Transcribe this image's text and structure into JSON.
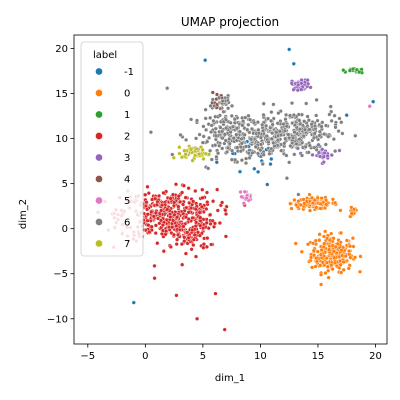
{
  "chart_data": {
    "type": "scatter",
    "title": "UMAP projection",
    "xlabel": "dim_1",
    "ylabel": "dim_2",
    "xlim": [
      -6.2,
      21.0
    ],
    "ylim": [
      -12.8,
      21.5
    ],
    "xticks": [
      -5,
      0,
      5,
      10,
      15,
      20
    ],
    "yticks": [
      -10,
      -5,
      0,
      5,
      10,
      15,
      20
    ],
    "grid": false,
    "legend": {
      "title": "label",
      "placement": "upper-left"
    },
    "series": [
      {
        "name": "-1",
        "color": "#1f77b4",
        "clusters": [
          {
            "cx": 9.5,
            "cy": 8.0,
            "sx": 1.6,
            "sy": 1.2,
            "n": 18
          }
        ],
        "points": [
          [
            12.5,
            19.9
          ],
          [
            5.2,
            18.7
          ],
          [
            -1.0,
            -8.2
          ],
          [
            12.9,
            18.3
          ],
          [
            17.5,
            12.6
          ],
          [
            9.8,
            6.3
          ],
          [
            10.6,
            4.9
          ],
          [
            -2.0,
            -0.5
          ],
          [
            1.8,
            2.5
          ],
          [
            19.8,
            14.1
          ]
        ]
      },
      {
        "name": "0",
        "color": "#ff7f0e",
        "clusters": [
          {
            "cx": 16.2,
            "cy": -2.8,
            "sx": 0.9,
            "sy": 1.0,
            "n": 260
          },
          {
            "cx": 14.7,
            "cy": 2.8,
            "sx": 1.0,
            "sy": 0.3,
            "n": 110
          },
          {
            "cx": 18.0,
            "cy": 1.8,
            "sx": 0.2,
            "sy": 0.3,
            "n": 15
          }
        ],
        "points": []
      },
      {
        "name": "1",
        "color": "#2ca02c",
        "clusters": [
          {
            "cx": 18.3,
            "cy": 17.5,
            "sx": 0.35,
            "sy": 0.12,
            "n": 18
          }
        ],
        "points": [
          [
            17.2,
            17.6
          ]
        ]
      },
      {
        "name": "2",
        "color": "#d62728",
        "clusters": [
          {
            "cx": 2.0,
            "cy": 1.5,
            "sx": 2.1,
            "sy": 1.4,
            "n": 450
          },
          {
            "cx": 4.0,
            "cy": -1.0,
            "sx": 0.8,
            "sy": 0.8,
            "n": 60
          }
        ],
        "points": [
          [
            0.8,
            -5.5
          ],
          [
            3.2,
            -4.0
          ],
          [
            2.7,
            -7.4
          ],
          [
            4.5,
            -10.0
          ],
          [
            6.9,
            -11.2
          ],
          [
            6.1,
            -7.2
          ]
        ]
      },
      {
        "name": "3",
        "color": "#9467bd",
        "clusters": [
          {
            "cx": 13.5,
            "cy": 16.0,
            "sx": 0.4,
            "sy": 0.3,
            "n": 40
          },
          {
            "cx": 15.3,
            "cy": 8.2,
            "sx": 0.6,
            "sy": 0.4,
            "n": 30
          }
        ],
        "points": []
      },
      {
        "name": "4",
        "color": "#8c564b",
        "clusters": [
          {
            "cx": 6.5,
            "cy": 14.0,
            "sx": 0.4,
            "sy": 0.5,
            "n": 15
          }
        ],
        "points": []
      },
      {
        "name": "5",
        "color": "#e377c2",
        "clusters": [
          {
            "cx": 8.7,
            "cy": 3.6,
            "sx": 0.25,
            "sy": 0.3,
            "n": 18
          }
        ],
        "points": [
          [
            6.9,
            13.0
          ],
          [
            19.5,
            13.6
          ],
          [
            4.6,
            8.8
          ]
        ]
      },
      {
        "name": "6",
        "color": "#7f7f7f",
        "clusters": [
          {
            "cx": 8.0,
            "cy": 10.5,
            "sx": 2.0,
            "sy": 1.3,
            "n": 240
          },
          {
            "cx": 13.5,
            "cy": 10.8,
            "sx": 1.6,
            "sy": 1.2,
            "n": 200
          },
          {
            "cx": 10.0,
            "cy": 9.5,
            "sx": 1.5,
            "sy": 1.0,
            "n": 120
          },
          {
            "cx": 6.8,
            "cy": 14.2,
            "sx": 0.5,
            "sy": 0.4,
            "n": 20
          }
        ],
        "points": [
          [
            1.9,
            15.6
          ],
          [
            12.3,
            5.6
          ],
          [
            13.3,
            3.8
          ]
        ]
      },
      {
        "name": "7",
        "color": "#bcbd22",
        "clusters": [
          {
            "cx": 4.3,
            "cy": 8.4,
            "sx": 0.55,
            "sy": 0.35,
            "n": 45
          }
        ],
        "points": []
      }
    ]
  }
}
